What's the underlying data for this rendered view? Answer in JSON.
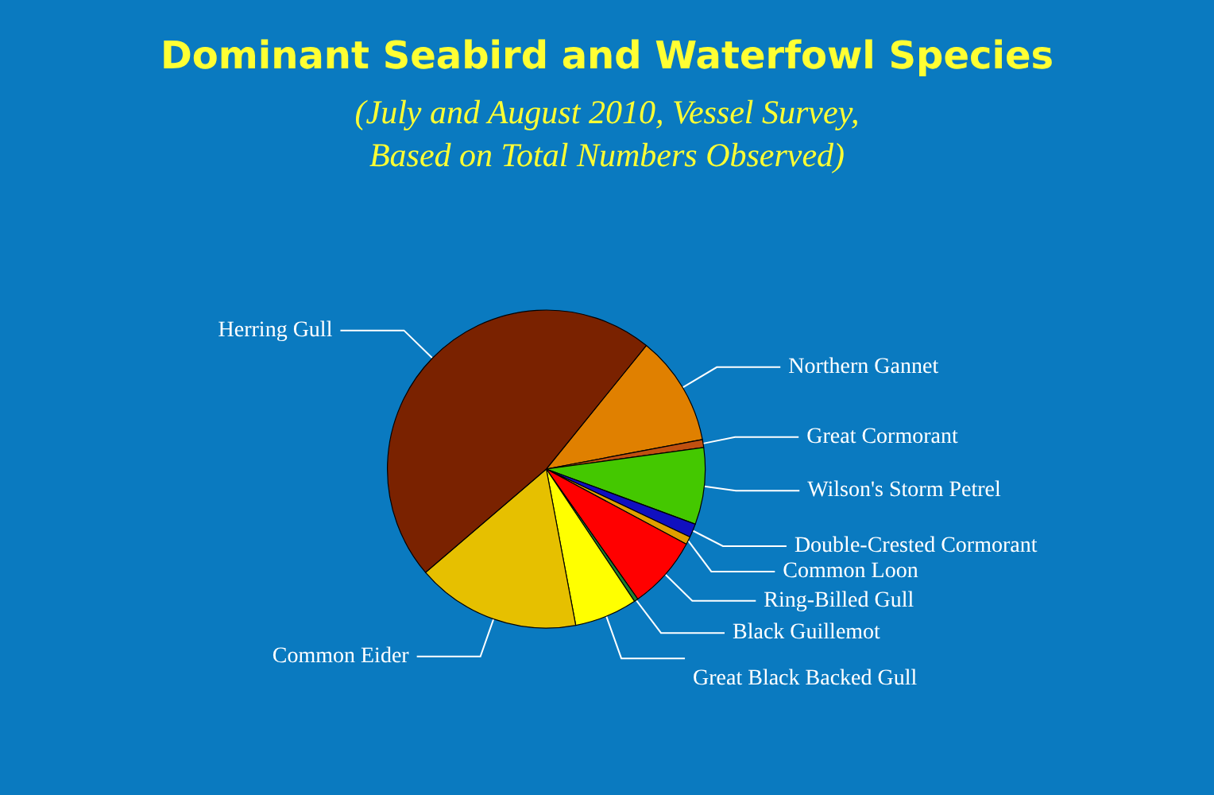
{
  "chart_data": {
    "type": "pie",
    "title": "Dominant Seabird and Waterfowl Species",
    "subtitle": "(July and August 2010, Vessel Survey,\nBased on Total Numbers Observed)",
    "categories": [
      "Northern Gannet",
      "Great Cormorant",
      "Wilson's Storm Petrel",
      "Double-Crested Cormorant",
      "Common Loon",
      "Ring-Billed Gull",
      "Black Guillemot",
      "Great Black Backed Gull",
      "Common Eider",
      "Herring Gull"
    ],
    "values": [
      11.2,
      0.8,
      7.8,
      1.4,
      0.8,
      7.4,
      0.4,
      6.4,
      16.7,
      47.1
    ],
    "colors": [
      "#e08000",
      "#c05010",
      "#44c800",
      "#1010c0",
      "#e0a000",
      "#ff0000",
      "#208030",
      "#ffff00",
      "#e6c000",
      "#7a2200"
    ],
    "legend": false
  }
}
